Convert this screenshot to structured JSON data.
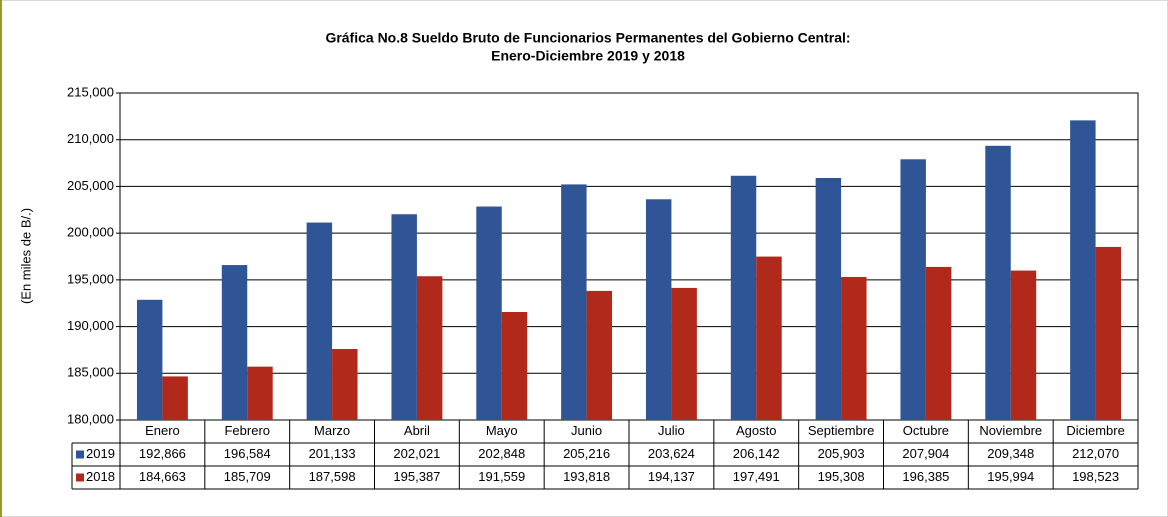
{
  "chart_data": {
    "type": "bar",
    "title": [
      "Gráfica No.8 Sueldo Bruto de Funcionarios Permanentes del Gobierno Central:",
      "Enero-Diciembre 2019 y 2018"
    ],
    "y_label": "(En miles de B/.)",
    "categories": [
      "Enero",
      "Febrero",
      "Marzo",
      "Abril",
      "Mayo",
      "Junio",
      "Julio",
      "Agosto",
      "Septiembre",
      "Octubre",
      "Noviembre",
      "Diciembre"
    ],
    "series": [
      {
        "name": "2019",
        "color": "#2f5597",
        "values": [
          192866,
          196584,
          201133,
          202021,
          202848,
          205216,
          203624,
          206142,
          205903,
          207904,
          209348,
          212070
        ],
        "value_labels": [
          "192,866",
          "196,584",
          "201,133",
          "202,021",
          "202,848",
          "205,216",
          "203,624",
          "206,142",
          "205,903",
          "207,904",
          "209,348",
          "212,070"
        ]
      },
      {
        "name": "2018",
        "color": "#b0291a",
        "values": [
          184663,
          185709,
          187598,
          195387,
          191559,
          193818,
          194137,
          197491,
          195308,
          196385,
          195994,
          198523
        ],
        "value_labels": [
          "184,663",
          "185,709",
          "187,598",
          "195,387",
          "191,559",
          "193,818",
          "194,137",
          "197,491",
          "195,308",
          "196,385",
          "195,994",
          "198,523"
        ]
      }
    ],
    "ylim": [
      180000,
      215000
    ],
    "yticks": [
      {
        "value": 180000,
        "label": "180,000"
      },
      {
        "value": 185000,
        "label": "185,000"
      },
      {
        "value": 190000,
        "label": "190,000"
      },
      {
        "value": 195000,
        "label": "195,000"
      },
      {
        "value": 200000,
        "label": "200,000"
      },
      {
        "value": 205000,
        "label": "205,000"
      },
      {
        "value": 210000,
        "label": "210,000"
      },
      {
        "value": 215000,
        "label": "215,000"
      }
    ],
    "grid": true
  }
}
